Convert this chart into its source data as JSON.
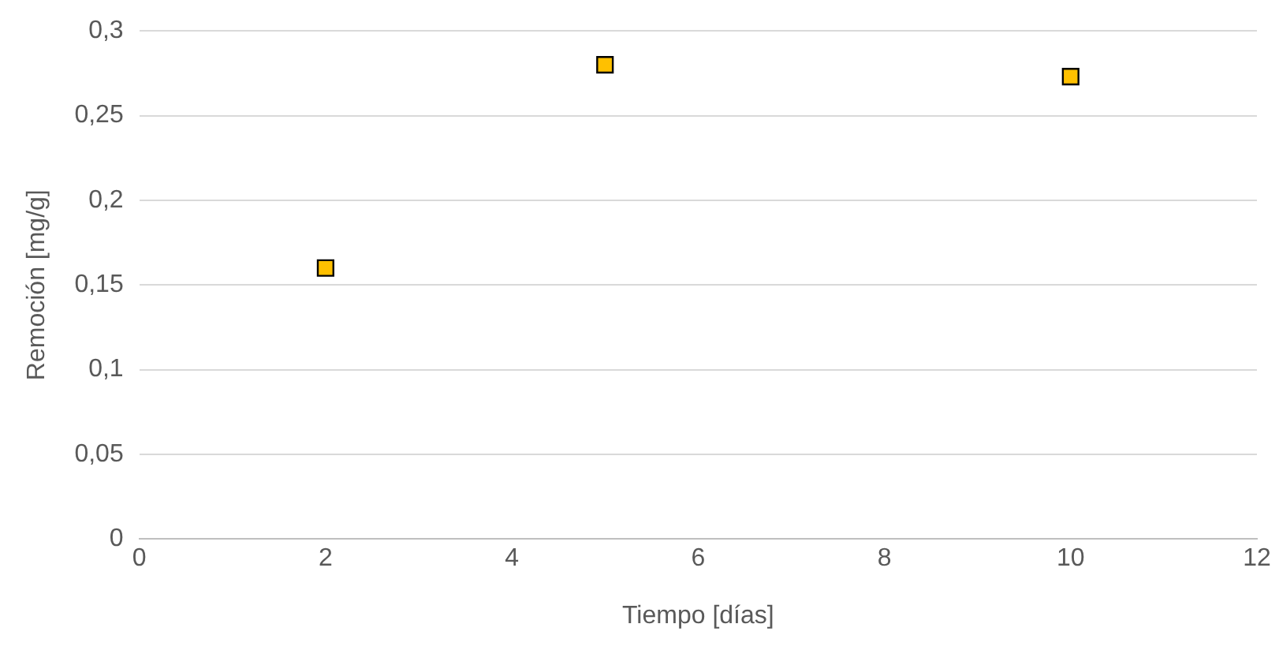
{
  "chart_data": {
    "type": "scatter",
    "xlabel": "Tiempo [días]",
    "ylabel": "Remoción [mg/g]",
    "x": [
      2,
      5,
      10
    ],
    "series": [
      {
        "color": "#ffc000",
        "values": [
          0.16,
          0.28,
          0.273
        ]
      }
    ],
    "xlim": [
      0,
      12
    ],
    "xticks": [
      0,
      2,
      4,
      6,
      8,
      10,
      12
    ],
    "ylim": [
      0,
      0.3
    ],
    "yticks": [
      0,
      {
        "value": 0.05,
        "label": "0,05"
      },
      {
        "value": 0.1,
        "label": "0,1"
      },
      {
        "value": 0.15,
        "label": "0,15"
      },
      {
        "value": 0.2,
        "label": "0,2"
      },
      {
        "value": 0.25,
        "label": "0,25"
      },
      {
        "value": 0.3,
        "label": "0,3"
      }
    ],
    "grid": "y",
    "legend": false,
    "marker": "square"
  }
}
